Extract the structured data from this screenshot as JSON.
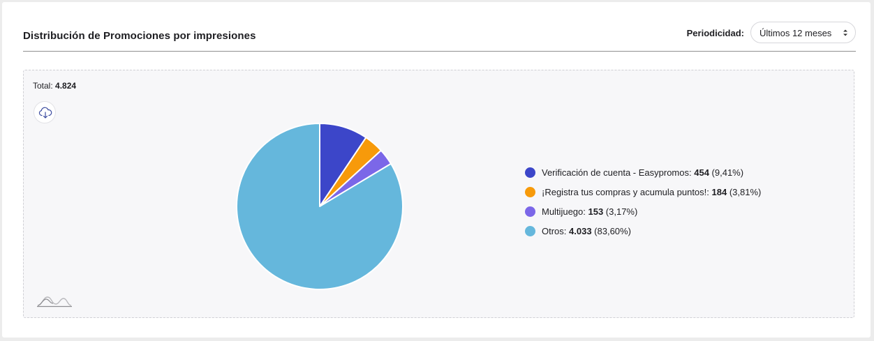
{
  "header": {
    "title": "Distribución de Promociones por impresiones",
    "period_label": "Periodicidad:",
    "period_value": "Últimos 12 meses"
  },
  "total": {
    "label": "Total:",
    "value": "4.824"
  },
  "icons": {
    "download": "cloud-download-icon",
    "select": "chevron-updown-icon",
    "logo": "wave-logo-icon"
  },
  "chart_data": {
    "type": "pie",
    "total": 4824,
    "slices": [
      {
        "label": "Verificación de cuenta - Easypromos:",
        "value": 454,
        "value_text": "454",
        "percent_text": "(9,41%)",
        "color": "#3c46c9"
      },
      {
        "label": "¡Registra tus compras y acumula puntos!:",
        "value": 184,
        "value_text": "184",
        "percent_text": "(3,81%)",
        "color": "#f79a0a"
      },
      {
        "label": "Multijuego:",
        "value": 153,
        "value_text": "153",
        "percent_text": "(3,17%)",
        "color": "#7b67e8"
      },
      {
        "label": "Otros:",
        "value": 4033,
        "value_text": "4.033",
        "percent_text": "(83,60%)",
        "color": "#65b7dc"
      }
    ],
    "legend_position": "right"
  }
}
